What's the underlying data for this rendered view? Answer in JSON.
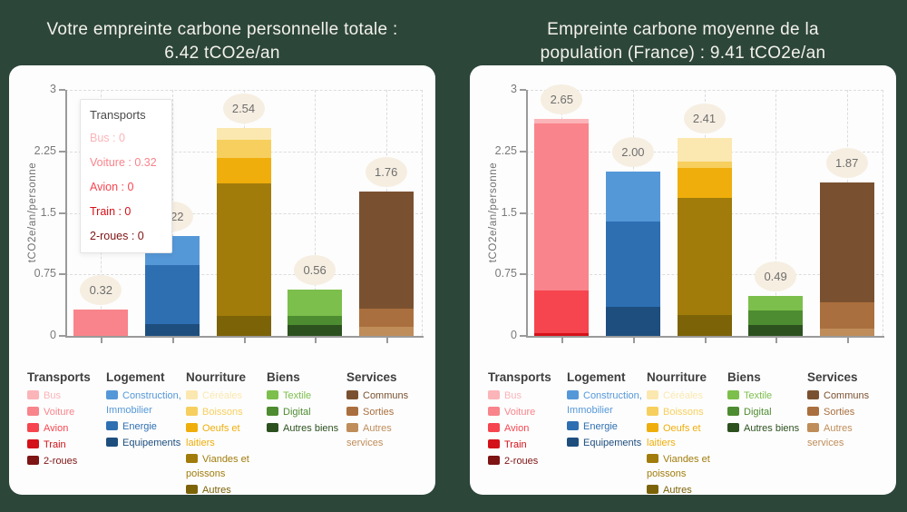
{
  "colors": {
    "background": "#2d463a",
    "card": "#fdfdfd",
    "title_text": "#f2f1ea",
    "axis": "#9a9a9a",
    "grid": "#dcdcdc",
    "badge_bg": "#f6eee1",
    "badge_text": "#6e6e6e",
    "legend_header": "#3e3e3e",
    "tooltip_title": "#4a4a4a"
  },
  "titles": {
    "left": "Votre empreinte carbone personnelle totale :\n6.42 tCO2e/an",
    "right": "Empreinte carbone moyenne de la\npopulation (France) : 9.41 tCO2e/an"
  },
  "chart_data": [
    {
      "type": "bar",
      "stacked": true,
      "title": "Votre empreinte carbone personnelle totale : 6.42 tCO2e/an",
      "total": 6.42,
      "ylabel": "tCO2e/an/personne",
      "ylim": [
        0,
        3
      ],
      "yticks": [
        0,
        0.75,
        1.5,
        2.25,
        3
      ],
      "grid": "dashed",
      "categories": [
        "Transports",
        "Logement",
        "Nourriture",
        "Biens",
        "Services"
      ],
      "bars": [
        {
          "category": "Transports",
          "total": "0.32",
          "segments": [
            {
              "label": "Voiture",
              "value": 0.32,
              "color": "#f9848b"
            }
          ]
        },
        {
          "category": "Logement",
          "total": "1.22",
          "segments": [
            {
              "label": "Equipements",
              "value": 0.14,
              "color": "#1d4e7e"
            },
            {
              "label": "Energie",
              "value": 0.72,
              "color": "#2e6fb2"
            },
            {
              "label": "Construction, Immobilier",
              "value": 0.36,
              "color": "#5598d8"
            }
          ]
        },
        {
          "category": "Nourriture",
          "total": "2.54",
          "segments": [
            {
              "label": "Autres",
              "value": 0.24,
              "color": "#7c6307"
            },
            {
              "label": "Viandes et poissons",
              "value": 1.62,
              "color": "#a17c0b"
            },
            {
              "label": "Oeufs et laitiers",
              "value": 0.31,
              "color": "#efae0b"
            },
            {
              "label": "Boissons",
              "value": 0.22,
              "color": "#f7cf5e"
            },
            {
              "label": "Céréales",
              "value": 0.15,
              "color": "#fbe8b0"
            }
          ]
        },
        {
          "category": "Biens",
          "total": "0.56",
          "segments": [
            {
              "label": "Autres biens",
              "value": 0.13,
              "color": "#2c511f"
            },
            {
              "label": "Digital",
              "value": 0.11,
              "color": "#4e8c31"
            },
            {
              "label": "Textile",
              "value": 0.32,
              "color": "#7cbf4c"
            }
          ]
        },
        {
          "category": "Services",
          "total": "1.76",
          "segments": [
            {
              "label": "Autres services",
              "value": 0.11,
              "color": "#bf8d5a"
            },
            {
              "label": "Sorties",
              "value": 0.22,
              "color": "#aa6f3e"
            },
            {
              "label": "Communs",
              "value": 1.43,
              "color": "#7a5130"
            }
          ]
        }
      ],
      "tooltip": {
        "title": "Transports",
        "rows": [
          {
            "label": "Bus",
            "value": "0",
            "color": "#fbb4b8"
          },
          {
            "label": "Voiture",
            "value": "0.32",
            "color": "#f9848b"
          },
          {
            "label": "Avion",
            "value": "0",
            "color": "#f6454f"
          },
          {
            "label": "Train",
            "value": "0",
            "color": "#d41118"
          },
          {
            "label": "2-roues",
            "value": "0",
            "color": "#7e1414"
          }
        ]
      },
      "legend": [
        {
          "group": "Transports",
          "items": [
            {
              "label": "Bus",
              "color": "#fbb4b8"
            },
            {
              "label": "Voiture",
              "color": "#f9848b"
            },
            {
              "label": "Avion",
              "color": "#f6454f"
            },
            {
              "label": "Train",
              "color": "#d41118"
            },
            {
              "label": "2-roues",
              "color": "#7e1414"
            }
          ]
        },
        {
          "group": "Logement",
          "items": [
            {
              "label": "Construction, Immobilier",
              "color": "#5598d8"
            },
            {
              "label": "Energie",
              "color": "#2e6fb2"
            },
            {
              "label": "Equipements",
              "color": "#1d4e7e"
            }
          ]
        },
        {
          "group": "Nourriture",
          "items": [
            {
              "label": "Céréales",
              "color": "#fbe8b0"
            },
            {
              "label": "Boissons",
              "color": "#f7cf5e"
            },
            {
              "label": "Oeufs et laitiers",
              "color": "#efae0b"
            },
            {
              "label": "Viandes et poissons",
              "color": "#a17c0b"
            },
            {
              "label": "Autres",
              "color": "#7c6307"
            }
          ]
        },
        {
          "group": "Biens",
          "items": [
            {
              "label": "Textile",
              "color": "#7cbf4c"
            },
            {
              "label": "Digital",
              "color": "#4e8c31"
            },
            {
              "label": "Autres biens",
              "color": "#2c511f"
            }
          ]
        },
        {
          "group": "Services",
          "items": [
            {
              "label": "Communs",
              "color": "#7a5130"
            },
            {
              "label": "Sorties",
              "color": "#aa6f3e"
            },
            {
              "label": "Autres services",
              "color": "#bf8d5a"
            }
          ]
        }
      ]
    },
    {
      "type": "bar",
      "stacked": true,
      "title": "Empreinte carbone moyenne de la population (France) : 9.41 tCO2e/an",
      "total": 9.41,
      "ylabel": "tCO2e/an/personne",
      "ylim": [
        0,
        3
      ],
      "yticks": [
        0,
        0.75,
        1.5,
        2.25,
        3
      ],
      "grid": "dashed",
      "categories": [
        "Transports",
        "Logement",
        "Nourriture",
        "Biens",
        "Services"
      ],
      "bars": [
        {
          "category": "Transports",
          "total": "2.65",
          "segments": [
            {
              "label": "Train",
              "value": 0.03,
              "color": "#d41118"
            },
            {
              "label": "Avion",
              "value": 0.52,
              "color": "#f6454f"
            },
            {
              "label": "Voiture",
              "value": 2.04,
              "color": "#f9848b"
            },
            {
              "label": "Bus",
              "value": 0.06,
              "color": "#fbb4b8"
            }
          ]
        },
        {
          "category": "Logement",
          "total": "2.00",
          "segments": [
            {
              "label": "Equipements",
              "value": 0.35,
              "color": "#1d4e7e"
            },
            {
              "label": "Energie",
              "value": 1.05,
              "color": "#2e6fb2"
            },
            {
              "label": "Construction, Immobilier",
              "value": 0.6,
              "color": "#5598d8"
            }
          ]
        },
        {
          "category": "Nourriture",
          "total": "2.41",
          "segments": [
            {
              "label": "Autres",
              "value": 0.26,
              "color": "#7c6307"
            },
            {
              "label": "Viandes et poissons",
              "value": 1.42,
              "color": "#a17c0b"
            },
            {
              "label": "Oeufs et laitiers",
              "value": 0.37,
              "color": "#efae0b"
            },
            {
              "label": "Boissons",
              "value": 0.08,
              "color": "#f7cf5e"
            },
            {
              "label": "Céréales",
              "value": 0.28,
              "color": "#fbe8b0"
            }
          ]
        },
        {
          "category": "Biens",
          "total": "0.49",
          "segments": [
            {
              "label": "Autres biens",
              "value": 0.13,
              "color": "#2c511f"
            },
            {
              "label": "Digital",
              "value": 0.18,
              "color": "#4e8c31"
            },
            {
              "label": "Textile",
              "value": 0.18,
              "color": "#7cbf4c"
            }
          ]
        },
        {
          "category": "Services",
          "total": "1.87",
          "segments": [
            {
              "label": "Autres services",
              "value": 0.09,
              "color": "#bf8d5a"
            },
            {
              "label": "Sorties",
              "value": 0.32,
              "color": "#aa6f3e"
            },
            {
              "label": "Communs",
              "value": 1.46,
              "color": "#7a5130"
            }
          ]
        }
      ],
      "legend": [
        {
          "group": "Transports",
          "items": [
            {
              "label": "Bus",
              "color": "#fbb4b8"
            },
            {
              "label": "Voiture",
              "color": "#f9848b"
            },
            {
              "label": "Avion",
              "color": "#f6454f"
            },
            {
              "label": "Train",
              "color": "#d41118"
            },
            {
              "label": "2-roues",
              "color": "#7e1414"
            }
          ]
        },
        {
          "group": "Logement",
          "items": [
            {
              "label": "Construction, Immobilier",
              "color": "#5598d8"
            },
            {
              "label": "Energie",
              "color": "#2e6fb2"
            },
            {
              "label": "Equipements",
              "color": "#1d4e7e"
            }
          ]
        },
        {
          "group": "Nourriture",
          "items": [
            {
              "label": "Céréales",
              "color": "#fbe8b0"
            },
            {
              "label": "Boissons",
              "color": "#f7cf5e"
            },
            {
              "label": "Oeufs et laitiers",
              "color": "#efae0b"
            },
            {
              "label": "Viandes et poissons",
              "color": "#a17c0b"
            },
            {
              "label": "Autres",
              "color": "#7c6307"
            }
          ]
        },
        {
          "group": "Biens",
          "items": [
            {
              "label": "Textile",
              "color": "#7cbf4c"
            },
            {
              "label": "Digital",
              "color": "#4e8c31"
            },
            {
              "label": "Autres biens",
              "color": "#2c511f"
            }
          ]
        },
        {
          "group": "Services",
          "items": [
            {
              "label": "Communs",
              "color": "#7a5130"
            },
            {
              "label": "Sorties",
              "color": "#aa6f3e"
            },
            {
              "label": "Autres services",
              "color": "#bf8d5a"
            }
          ]
        }
      ]
    }
  ]
}
